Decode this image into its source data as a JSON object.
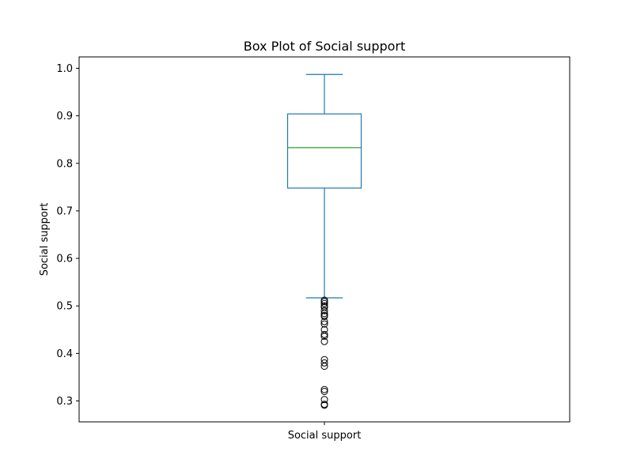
{
  "chart_data": {
    "type": "box",
    "title": "Box Plot of Social support",
    "xlabel": "",
    "ylabel": "Social support",
    "categories": [
      "Social support"
    ],
    "ylim": [
      0.256,
      1.024
    ],
    "yticks": [
      0.3,
      0.4,
      0.5,
      0.6,
      0.7,
      0.8,
      0.9,
      1.0
    ],
    "ytick_labels": [
      "0.3",
      "0.4",
      "0.5",
      "0.6",
      "0.7",
      "0.8",
      "0.9",
      "1.0"
    ],
    "grid": false,
    "legend": "none",
    "box": {
      "whisker_low": 0.517,
      "q1": 0.748,
      "median": 0.833,
      "q3": 0.904,
      "whisker_high": 0.987
    },
    "outliers": [
      0.512,
      0.509,
      0.505,
      0.5,
      0.497,
      0.49,
      0.484,
      0.48,
      0.478,
      0.467,
      0.462,
      0.45,
      0.44,
      0.436,
      0.425,
      0.387,
      0.38,
      0.373,
      0.324,
      0.32,
      0.303,
      0.293,
      0.291
    ],
    "colors": {
      "box": "#1f77b4",
      "median": "#2ca02c",
      "outlier": "#000000",
      "axes": "#000000"
    }
  }
}
